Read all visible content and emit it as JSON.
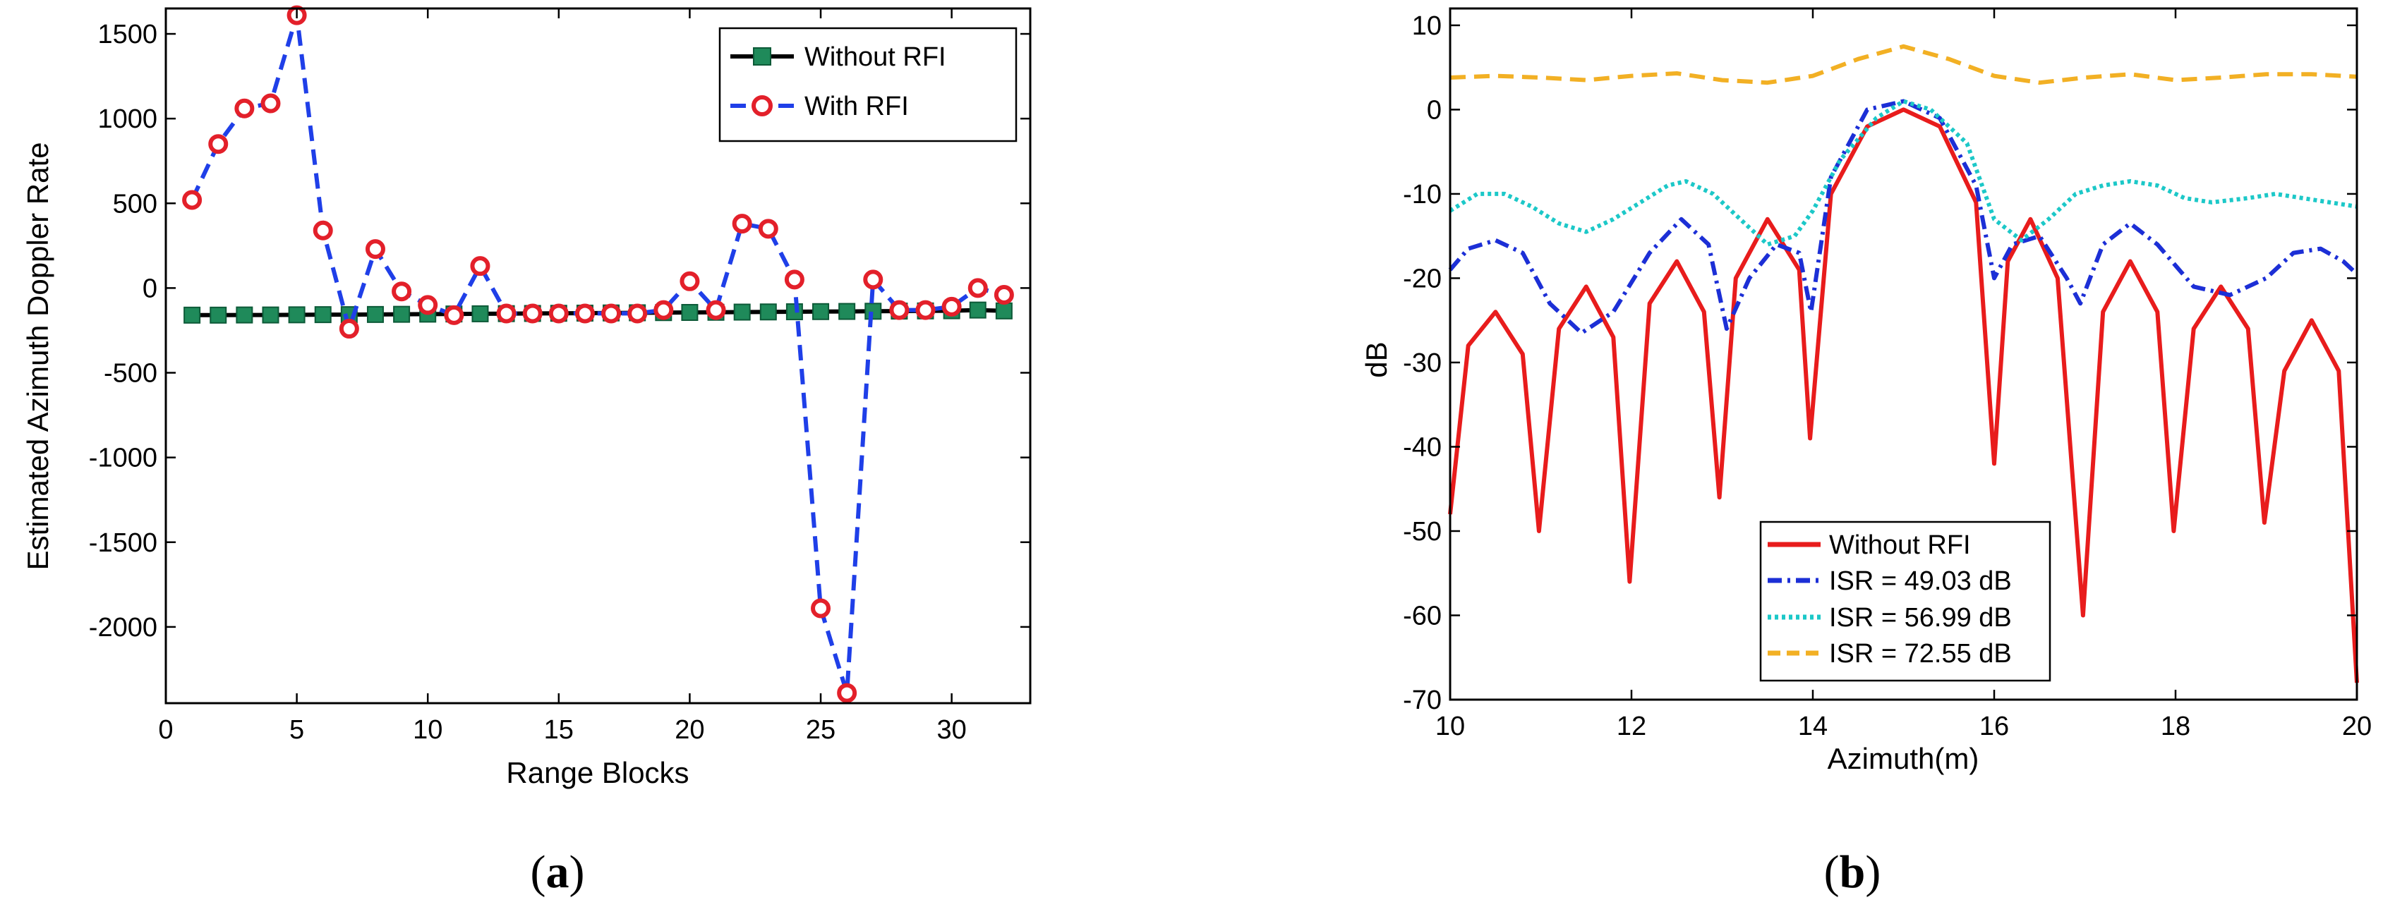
{
  "chart_data": [
    {
      "type": "line",
      "panel_label": "a",
      "xlabel": "Range Blocks",
      "ylabel": "Estimated Azimuth Doppler Rate",
      "xlim": [
        0,
        33
      ],
      "ylim": [
        -2450,
        1650
      ],
      "xticks": [
        0,
        5,
        10,
        15,
        20,
        25,
        30
      ],
      "yticks": [
        -2000,
        -1500,
        -1000,
        -500,
        0,
        500,
        1000,
        1500
      ],
      "legend_position": "top-right",
      "series": [
        {
          "name": "Without RFI",
          "color": "#000000",
          "marker_color": "#1f8a5a",
          "marker": "square",
          "style": "solid",
          "x": [
            1,
            2,
            3,
            4,
            5,
            6,
            7,
            8,
            9,
            10,
            11,
            12,
            13,
            14,
            15,
            16,
            17,
            18,
            19,
            20,
            21,
            22,
            23,
            24,
            25,
            26,
            27,
            28,
            29,
            30,
            31,
            32
          ],
          "y": [
            -160,
            -160,
            -159,
            -159,
            -158,
            -157,
            -157,
            -156,
            -155,
            -154,
            -153,
            -152,
            -151,
            -150,
            -149,
            -148,
            -147,
            -146,
            -145,
            -144,
            -143,
            -142,
            -141,
            -140,
            -139,
            -138,
            -137,
            -136,
            -135,
            -134,
            -130,
            -135
          ]
        },
        {
          "name": "With RFI",
          "color": "#1f3fe8",
          "marker_color": "#e3202a",
          "marker": "circle",
          "style": "dashed",
          "x": [
            1,
            2,
            3,
            4,
            5,
            6,
            7,
            8,
            9,
            10,
            11,
            12,
            13,
            14,
            15,
            16,
            17,
            18,
            19,
            20,
            21,
            22,
            23,
            24,
            25,
            26,
            27,
            28,
            29,
            30,
            31,
            32
          ],
          "y": [
            520,
            850,
            1060,
            1090,
            1610,
            340,
            -240,
            230,
            -20,
            -100,
            -160,
            130,
            -150,
            -150,
            -150,
            -150,
            -150,
            -150,
            -130,
            40,
            -130,
            380,
            350,
            50,
            -1890,
            -2390,
            50,
            -130,
            -130,
            -110,
            0,
            -40
          ]
        }
      ]
    },
    {
      "type": "line",
      "panel_label": "b",
      "xlabel": "Azimuth(m)",
      "ylabel": "dB",
      "xlim": [
        10,
        20
      ],
      "ylim": [
        -70,
        12
      ],
      "xticks": [
        10,
        12,
        14,
        16,
        18,
        20
      ],
      "yticks": [
        -70,
        -60,
        -50,
        -40,
        -30,
        -20,
        -10,
        0,
        10
      ],
      "legend_position": "bottom-center",
      "series": [
        {
          "name": "Without RFI",
          "color": "#e81c1c",
          "style": "solid",
          "x": [
            10.0,
            10.2,
            10.5,
            10.8,
            10.98,
            11.2,
            11.5,
            11.8,
            11.98,
            12.2,
            12.5,
            12.8,
            12.97,
            13.15,
            13.5,
            13.85,
            13.97,
            14.2,
            14.6,
            15.0,
            15.4,
            15.8,
            16.0,
            16.15,
            16.4,
            16.7,
            16.98,
            17.2,
            17.5,
            17.8,
            17.98,
            18.2,
            18.5,
            18.8,
            18.98,
            19.2,
            19.5,
            19.8,
            20.0
          ],
          "y": [
            -48,
            -28,
            -24,
            -29,
            -50,
            -26,
            -21,
            -27,
            -56,
            -23,
            -18,
            -24,
            -46,
            -20,
            -13,
            -19,
            -39,
            -10,
            -2,
            0,
            -2,
            -11,
            -42,
            -18,
            -13,
            -20,
            -60,
            -24,
            -18,
            -24,
            -50,
            -26,
            -21,
            -26,
            -49,
            -31,
            -25,
            -31,
            -68
          ]
        },
        {
          "name": "ISR = 49.03 dB",
          "color": "#1c2fd6",
          "style": "dashdot",
          "x": [
            10.0,
            10.2,
            10.5,
            10.8,
            11.1,
            11.45,
            11.8,
            12.2,
            12.55,
            12.85,
            13.05,
            13.3,
            13.6,
            13.85,
            13.98,
            14.2,
            14.6,
            15.0,
            15.4,
            15.8,
            16.0,
            16.2,
            16.5,
            16.8,
            16.95,
            17.2,
            17.5,
            17.8,
            18.2,
            18.6,
            19.0,
            19.3,
            19.6,
            19.85,
            20.0
          ],
          "y": [
            -19,
            -16.5,
            -15.5,
            -17,
            -23,
            -26.5,
            -24,
            -17,
            -13,
            -16,
            -26,
            -20,
            -16,
            -17,
            -24,
            -8,
            0,
            1,
            -1,
            -9,
            -20,
            -16,
            -15,
            -20,
            -23,
            -16,
            -13.5,
            -16,
            -21,
            -22,
            -20,
            -17,
            -16.5,
            -18,
            -19.5
          ]
        },
        {
          "name": "ISR = 56.99 dB",
          "color": "#1cc8c8",
          "style": "dotted",
          "x": [
            10.0,
            10.3,
            10.6,
            10.9,
            11.2,
            11.5,
            11.8,
            12.1,
            12.4,
            12.6,
            12.9,
            13.2,
            13.5,
            13.8,
            14.0,
            14.3,
            14.7,
            15.0,
            15.3,
            15.7,
            16.0,
            16.3,
            16.6,
            16.9,
            17.2,
            17.5,
            17.8,
            18.1,
            18.4,
            18.8,
            19.1,
            19.4,
            19.7,
            20.0
          ],
          "y": [
            -12,
            -10,
            -10,
            -11.5,
            -13.5,
            -14.5,
            -13,
            -11,
            -9,
            -8.5,
            -10,
            -13,
            -16,
            -15,
            -12,
            -6,
            -1,
            1,
            0,
            -4,
            -13,
            -15.5,
            -13,
            -10,
            -9,
            -8.5,
            -9,
            -10.5,
            -11,
            -10.5,
            -10,
            -10.5,
            -11,
            -11.5
          ]
        },
        {
          "name": "ISR = 72.55 dB",
          "color": "#f2b024",
          "style": "dashed",
          "x": [
            10.0,
            10.5,
            11.0,
            11.5,
            12.0,
            12.5,
            13.0,
            13.5,
            14.0,
            14.5,
            15.0,
            15.5,
            16.0,
            16.5,
            17.0,
            17.5,
            18.0,
            18.5,
            19.0,
            19.5,
            20.0
          ],
          "y": [
            3.8,
            4.0,
            3.8,
            3.5,
            4.0,
            4.3,
            3.5,
            3.2,
            4.0,
            6.0,
            7.5,
            6.0,
            4.0,
            3.2,
            3.8,
            4.2,
            3.5,
            3.8,
            4.2,
            4.2,
            3.9
          ]
        }
      ]
    }
  ]
}
